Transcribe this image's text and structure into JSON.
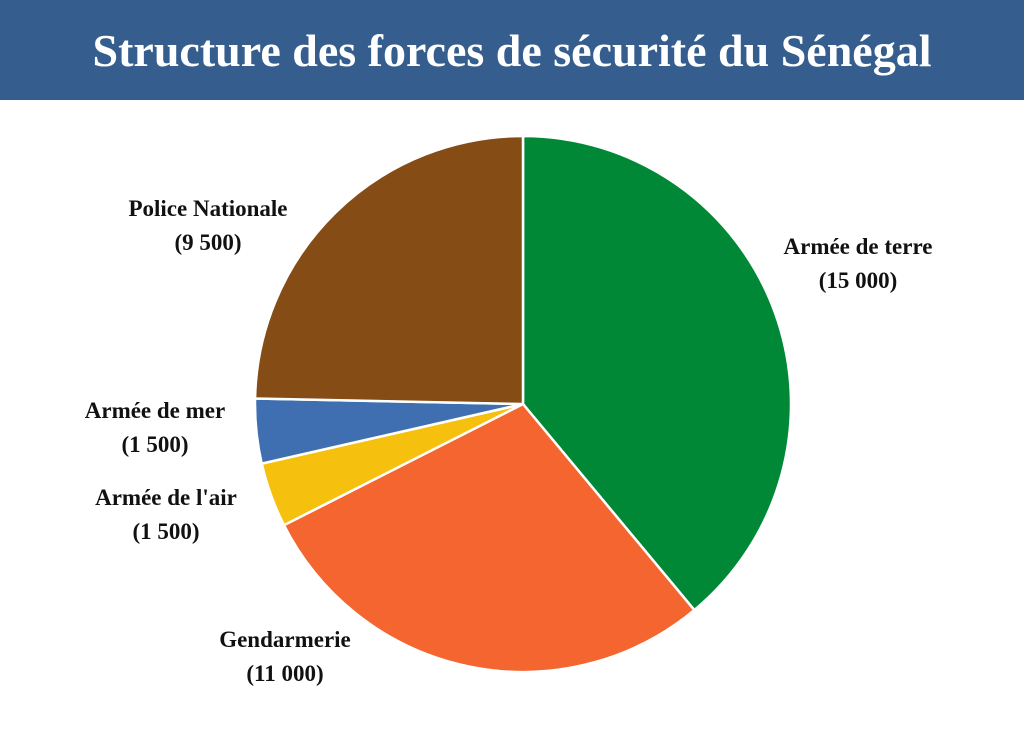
{
  "title": "Structure des forces de sécurité du Sénégal",
  "colors": {
    "header_bg": "#355e8e"
  },
  "chart_data": {
    "type": "pie",
    "categories": [
      "Armée de terre",
      "Gendarmerie",
      "Armée de l'air",
      "Armée de mer",
      "Police Nationale"
    ],
    "values": [
      15000,
      11000,
      1500,
      1500,
      9500
    ],
    "value_labels": [
      "(15 000)",
      "(11 000)",
      "(1 500)",
      "(1 500)",
      "(9 500)"
    ],
    "colors": [
      "#008837",
      "#f46530",
      "#f5c10e",
      "#3f6fb0",
      "#854c15"
    ],
    "start_angle_deg": 0,
    "direction": "clockwise"
  }
}
